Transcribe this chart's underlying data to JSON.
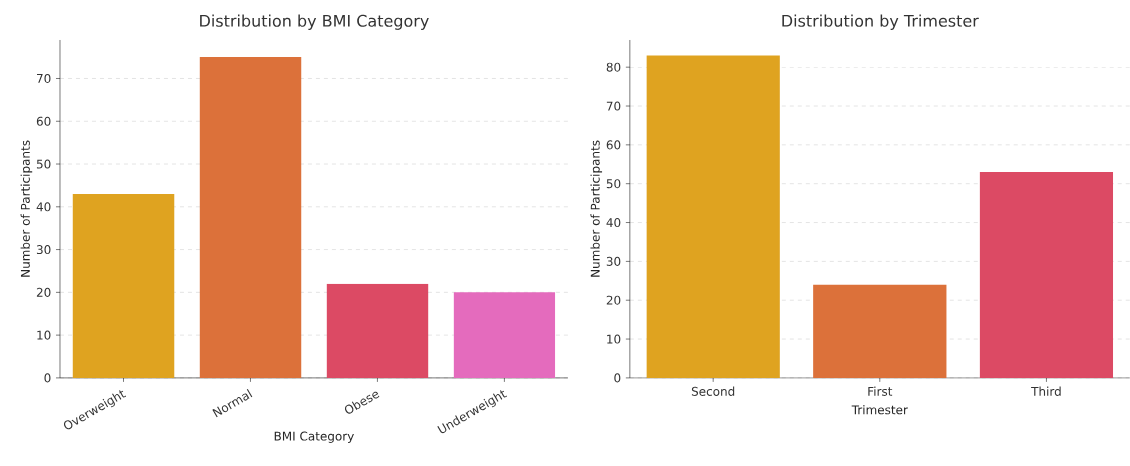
{
  "chart_data": [
    {
      "type": "bar",
      "title": "Distribution by BMI Category",
      "xlabel": "BMI Category",
      "ylabel": "Number of Participants",
      "categories": [
        "Overweight",
        "Normal",
        "Obese",
        "Underweight"
      ],
      "values": [
        43,
        75,
        22,
        20
      ],
      "colors": [
        "#dfa320",
        "#dc713a",
        "#dc4a64",
        "#e46bbd"
      ],
      "ylim": [
        0,
        79
      ],
      "yticks": [
        0,
        10,
        20,
        30,
        40,
        50,
        60,
        70
      ],
      "grid": "y"
    },
    {
      "type": "bar",
      "title": "Distribution by Trimester",
      "xlabel": "Trimester",
      "ylabel": "Number of Participants",
      "categories": [
        "Second",
        "First",
        "Third"
      ],
      "values": [
        83,
        24,
        53
      ],
      "colors": [
        "#dfa320",
        "#dc713a",
        "#dc4a64"
      ],
      "ylim": [
        0,
        87
      ],
      "yticks": [
        0,
        10,
        20,
        30,
        40,
        50,
        60,
        70,
        80
      ],
      "grid": "y"
    }
  ]
}
